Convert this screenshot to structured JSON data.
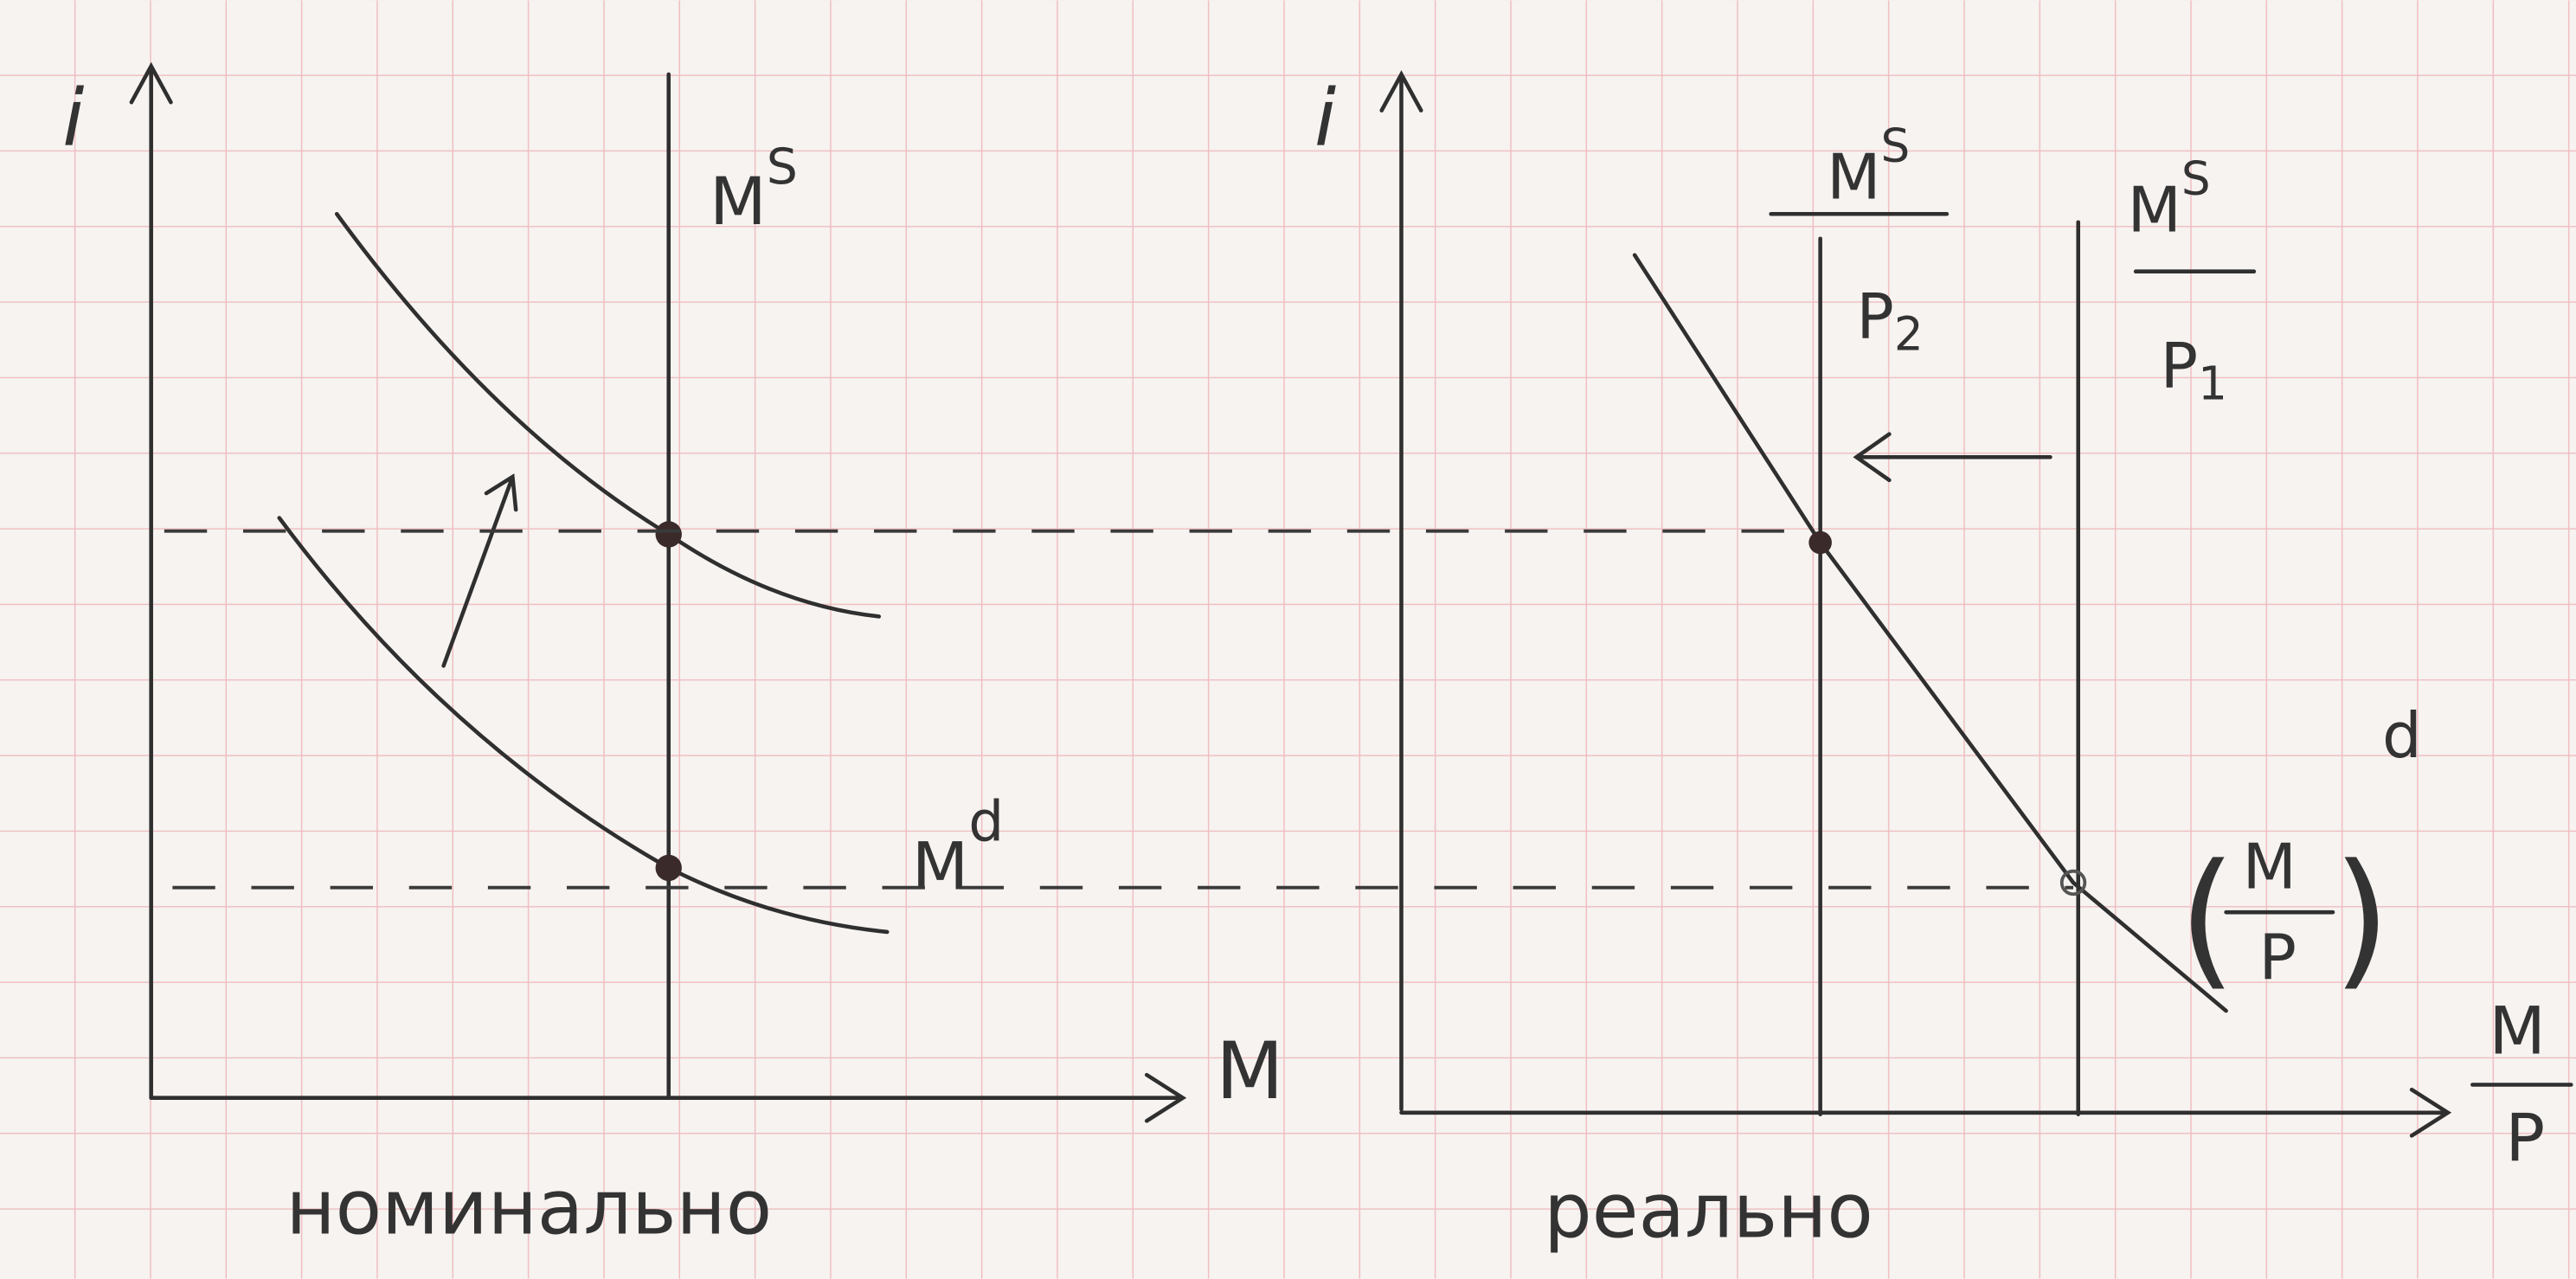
{
  "left_panel": {
    "y_axis_label": "i",
    "x_axis_label": "M",
    "supply_label": {
      "base": "M",
      "sup": "S"
    },
    "demand_label": {
      "base": "M",
      "sup": "d"
    },
    "caption": "номинально"
  },
  "right_panel": {
    "y_axis_label": "i",
    "supply_2_label": {
      "base": "M",
      "sup": "S",
      "den": "P",
      "den_sub": "2"
    },
    "supply_1_label": {
      "base": "M",
      "sup": "S",
      "den": "P",
      "den_sub": "1"
    },
    "demand_label": {
      "num": "M",
      "den": "P",
      "sup": "d"
    },
    "x_axis_label": {
      "num": "M",
      "den": "P"
    },
    "caption": "реально"
  }
}
